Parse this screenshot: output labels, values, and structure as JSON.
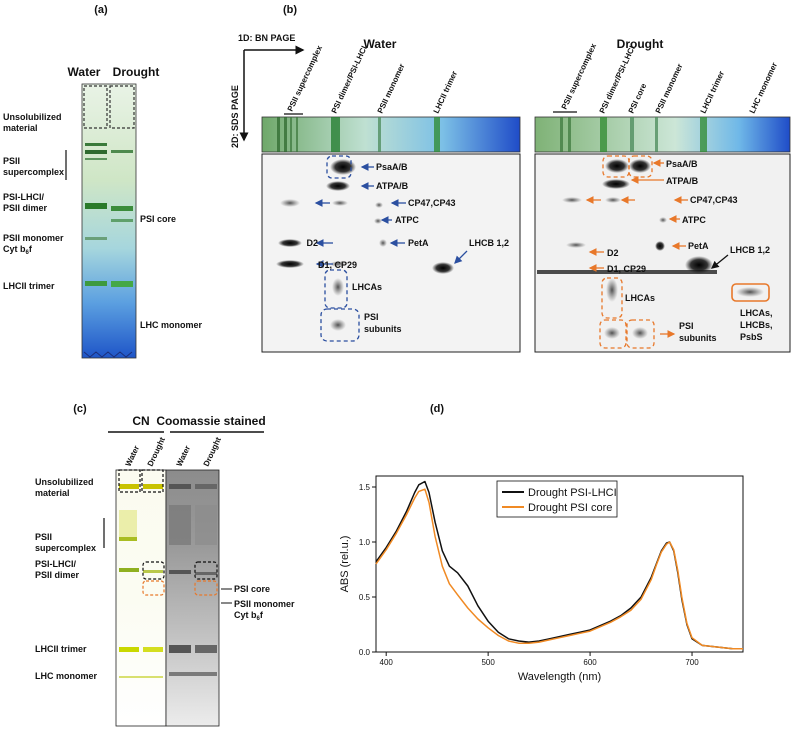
{
  "panel_a": {
    "letter": "(a)",
    "lanes": [
      "Water",
      "Drought"
    ],
    "labels": {
      "unsolubilized": [
        "Unsolubilized",
        "material"
      ],
      "psii_super": [
        "PSII",
        "supercomplex"
      ],
      "psi_lhci": [
        "PSI-LHCI/",
        "PSII dimer"
      ],
      "psii_mono": [
        "PSII monomer",
        "Cyt b6f"
      ],
      "lhcii": "LHCII trimer",
      "psi_core": "PSI core",
      "lhc_mono": "LHC monomer"
    }
  },
  "panel_b": {
    "letter": "(b)",
    "axis_1d": "1D: BN PAGE",
    "axis_2d": "2D: SDS PAGE",
    "water": {
      "title": "Water",
      "bands": [
        "PSII supercomplex",
        "PSI dimer/PSI-LHCI",
        "PSII monomer",
        "LHCII trimer"
      ],
      "spots": [
        "PsaA/B",
        "ATPA/B",
        "CP47,CP43",
        "ATPC",
        "D2",
        "PetA",
        "D1, CP29",
        "LHCB 1,2",
        "LHCAs",
        "PSI",
        "subunits"
      ]
    },
    "drought": {
      "title": "Drought",
      "bands": [
        "PSII supercomplex",
        "PSI dimer/PSI-LHCI",
        "PSI core",
        "PSII monomer",
        "LHCII trimer",
        "LHC monomer"
      ],
      "spots": [
        "PsaA/B",
        "ATPA/B",
        "CP47,CP43",
        "ATPC",
        "D2",
        "PetA",
        "D1, CP29",
        "LHCB 1,2",
        "LHCAs",
        "PSI",
        "subunits",
        "LHCAs,",
        "LHCBs,",
        "PsbS"
      ]
    }
  },
  "panel_c": {
    "letter": "(c)",
    "groups": [
      "CN",
      "Coomassie stained"
    ],
    "lanes": [
      "Water",
      "Drought",
      "Water",
      "Drought"
    ],
    "labels": {
      "unsolubilized": [
        "Unsolubilized",
        "material"
      ],
      "psii_super": [
        "PSII",
        "supercomplex"
      ],
      "psi_lhci": [
        "PSI-LHCI/",
        "PSII dimer"
      ],
      "psi_core": "PSI core",
      "psii_mono": [
        "PSII monomer",
        "Cyt b6f"
      ],
      "lhcii": "LHCII trimer",
      "lhc_mono": "LHC monomer"
    }
  },
  "panel_d": {
    "letter": "(d)"
  },
  "colors": {
    "blue_arrow": "#2b4fa0",
    "orange_arrow": "#e8782a",
    "trace_black": "#111111",
    "trace_orange": "#f08a24"
  },
  "chart_data": {
    "type": "line",
    "title": "",
    "xlabel": "Wavelength (nm)",
    "ylabel": "ABS (rel.u.)",
    "xlim": [
      390,
      750
    ],
    "ylim": [
      0,
      1.6
    ],
    "xticks": [
      400,
      500,
      600,
      700
    ],
    "yticks": [
      0.0,
      0.5,
      1.0,
      1.5
    ],
    "legend_position": "top-right",
    "series": [
      {
        "name": "Drought PSI-LHCI",
        "color": "#111111",
        "x": [
          390,
          400,
          410,
          420,
          428,
          432,
          438,
          442,
          448,
          455,
          462,
          470,
          480,
          490,
          500,
          510,
          520,
          530,
          540,
          550,
          560,
          570,
          580,
          590,
          600,
          610,
          620,
          630,
          640,
          650,
          660,
          665,
          670,
          675,
          678,
          682,
          686,
          690,
          695,
          700,
          710,
          720,
          730,
          740,
          750
        ],
        "y": [
          0.82,
          0.95,
          1.1,
          1.28,
          1.45,
          1.52,
          1.55,
          1.45,
          1.18,
          0.92,
          0.78,
          0.72,
          0.6,
          0.42,
          0.28,
          0.18,
          0.12,
          0.1,
          0.09,
          0.1,
          0.12,
          0.14,
          0.16,
          0.18,
          0.2,
          0.24,
          0.28,
          0.33,
          0.4,
          0.5,
          0.68,
          0.8,
          0.92,
          0.99,
          1.0,
          0.92,
          0.72,
          0.48,
          0.25,
          0.12,
          0.06,
          0.05,
          0.04,
          0.03,
          0.03
        ]
      },
      {
        "name": "Drought PSI core",
        "color": "#f08a24",
        "x": [
          390,
          400,
          410,
          420,
          428,
          432,
          438,
          442,
          448,
          455,
          462,
          470,
          480,
          490,
          500,
          510,
          520,
          530,
          540,
          550,
          560,
          570,
          580,
          590,
          600,
          610,
          620,
          630,
          640,
          650,
          660,
          665,
          670,
          675,
          678,
          682,
          686,
          690,
          695,
          700,
          710,
          720,
          730,
          740,
          750
        ],
        "y": [
          0.8,
          0.93,
          1.08,
          1.25,
          1.4,
          1.46,
          1.48,
          1.36,
          1.05,
          0.78,
          0.62,
          0.52,
          0.4,
          0.3,
          0.22,
          0.15,
          0.1,
          0.08,
          0.08,
          0.09,
          0.11,
          0.13,
          0.15,
          0.17,
          0.19,
          0.23,
          0.27,
          0.32,
          0.38,
          0.48,
          0.66,
          0.79,
          0.91,
          0.98,
          1.0,
          0.93,
          0.74,
          0.5,
          0.26,
          0.13,
          0.06,
          0.05,
          0.04,
          0.03,
          0.03
        ]
      }
    ]
  }
}
